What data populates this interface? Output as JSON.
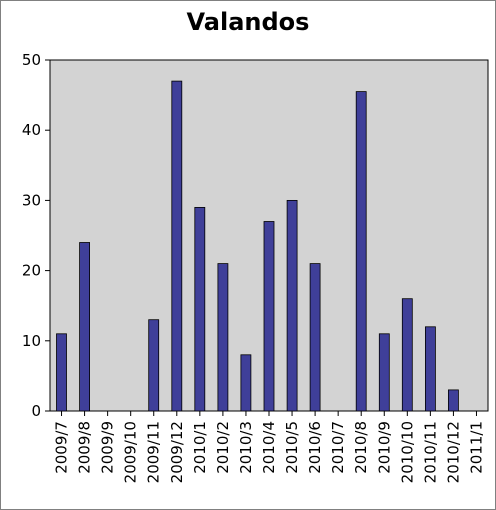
{
  "chart_data": {
    "type": "bar",
    "title": "Valandos",
    "xlabel": "",
    "ylabel": "",
    "ylim": [
      0,
      50
    ],
    "yticks": [
      0,
      10,
      20,
      30,
      40,
      50
    ],
    "grid": false,
    "legend": "none",
    "categories": [
      "2009/7",
      "2009/8",
      "2009/9",
      "2009/10",
      "2009/11",
      "2009/12",
      "2010/1",
      "2010/2",
      "2010/3",
      "2010/4",
      "2010/5",
      "2010/6",
      "2010/7",
      "2010/8",
      "2010/9",
      "2010/10",
      "2010/11",
      "2010/12",
      "2011/1"
    ],
    "values": [
      11,
      24,
      0,
      0,
      13,
      47,
      29,
      21,
      8,
      27,
      30,
      21,
      0,
      45.5,
      11,
      16,
      12,
      3,
      0
    ]
  },
  "colors": {
    "bar_fill": "#3f3f99",
    "plot_background": "#d3d3d3",
    "axis": "#000000"
  }
}
